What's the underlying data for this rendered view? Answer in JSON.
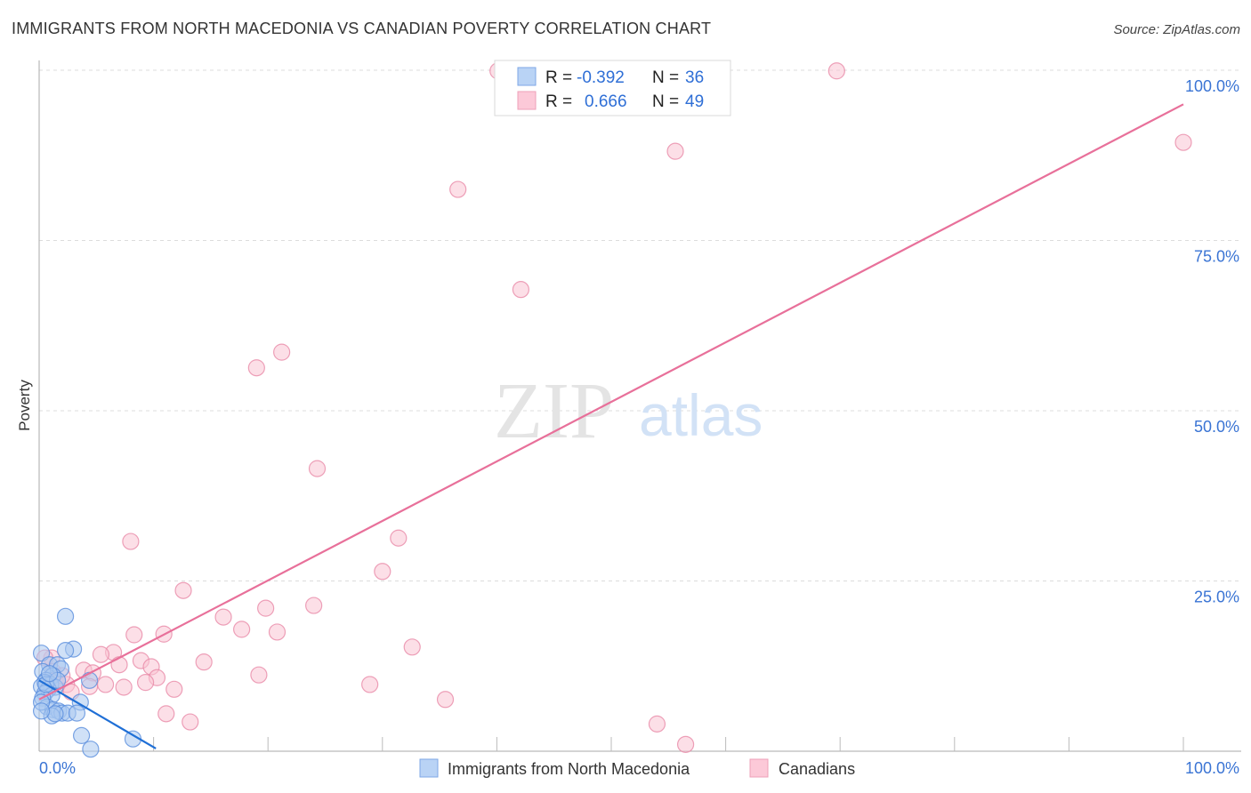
{
  "title": "IMMIGRANTS FROM NORTH MACEDONIA VS CANADIAN POVERTY CORRELATION CHART",
  "source": "Source: ZipAtlas.com",
  "watermark": {
    "zip": "ZIP",
    "atlas": "atlas"
  },
  "colors": {
    "blue_fill": "#a9c8f0",
    "blue_stroke": "#5b8fdd",
    "blue_line": "#1f6fd6",
    "pink_fill": "#f9c4d4",
    "pink_stroke": "#e88aa8",
    "pink_line": "#e8709a",
    "tick_text": "#3a74d4"
  },
  "chart_data": {
    "type": "scatter",
    "title": "IMMIGRANTS FROM NORTH MACEDONIA VS CANADIAN POVERTY CORRELATION CHART",
    "xlabel": "",
    "ylabel": "Poverty",
    "xlim": [
      0,
      100
    ],
    "ylim": [
      0,
      100
    ],
    "x_tick_labels": [
      "0.0%",
      "100.0%"
    ],
    "y_ticks": [
      25,
      50,
      75,
      100
    ],
    "y_tick_labels": [
      "25.0%",
      "50.0%",
      "75.0%",
      "100.0%"
    ],
    "grid": "horizontal dashed",
    "legend_position": "top-center",
    "stats": [
      {
        "r_label": "R =",
        "r": "-0.392",
        "n_label": "N =",
        "n": "36"
      },
      {
        "r_label": "R =",
        "r": "0.666",
        "n_label": "N =",
        "n": "49"
      }
    ],
    "series": [
      {
        "name": "Immigrants from North Macedonia",
        "color": "blue",
        "trend": {
          "x": [
            0,
            10.2
          ],
          "y": [
            10.4,
            0.4
          ]
        },
        "points": [
          [
            2.3,
            19.8
          ],
          [
            3.0,
            15.0
          ],
          [
            2.3,
            14.8
          ],
          [
            0.2,
            14.4
          ],
          [
            0.9,
            12.7
          ],
          [
            1.6,
            12.7
          ],
          [
            1.9,
            12.1
          ],
          [
            0.3,
            11.7
          ],
          [
            1.2,
            11.1
          ],
          [
            0.6,
            10.4
          ],
          [
            0.5,
            10.1
          ],
          [
            1.0,
            9.8
          ],
          [
            0.2,
            9.5
          ],
          [
            1.4,
            9.4
          ],
          [
            0.8,
            9.1
          ],
          [
            0.5,
            8.5
          ],
          [
            1.1,
            8.2
          ],
          [
            0.3,
            7.8
          ],
          [
            3.6,
            7.2
          ],
          [
            0.7,
            6.5
          ],
          [
            1.2,
            6.1
          ],
          [
            1.7,
            5.9
          ],
          [
            2.0,
            5.6
          ],
          [
            2.5,
            5.6
          ],
          [
            3.3,
            5.6
          ],
          [
            1.1,
            5.2
          ],
          [
            1.4,
            5.5
          ],
          [
            4.4,
            10.4
          ],
          [
            3.7,
            2.3
          ],
          [
            8.2,
            1.8
          ],
          [
            4.5,
            0.3
          ],
          [
            0.2,
            7.2
          ],
          [
            0.6,
            9.8
          ],
          [
            1.6,
            10.4
          ],
          [
            0.9,
            11.4
          ],
          [
            0.2,
            5.9
          ]
        ]
      },
      {
        "name": "Canadians",
        "color": "pink",
        "trend": {
          "x": [
            0,
            100
          ],
          "y": [
            7.6,
            95.0
          ]
        },
        "points": [
          [
            40.1,
            99.9
          ],
          [
            69.7,
            99.9
          ],
          [
            100,
            89.4
          ],
          [
            55.6,
            88.1
          ],
          [
            36.6,
            82.5
          ],
          [
            42.1,
            67.8
          ],
          [
            21.2,
            58.6
          ],
          [
            19.0,
            56.3
          ],
          [
            24.3,
            41.5
          ],
          [
            31.4,
            31.3
          ],
          [
            8.0,
            30.8
          ],
          [
            30.0,
            26.4
          ],
          [
            12.6,
            23.6
          ],
          [
            24.0,
            21.4
          ],
          [
            19.8,
            21.0
          ],
          [
            16.1,
            19.7
          ],
          [
            17.7,
            17.9
          ],
          [
            20.8,
            17.5
          ],
          [
            10.9,
            17.2
          ],
          [
            8.3,
            17.1
          ],
          [
            32.6,
            15.3
          ],
          [
            6.5,
            14.5
          ],
          [
            5.4,
            14.2
          ],
          [
            14.4,
            13.1
          ],
          [
            8.9,
            13.3
          ],
          [
            7.0,
            12.7
          ],
          [
            9.8,
            12.4
          ],
          [
            3.9,
            11.9
          ],
          [
            4.7,
            11.5
          ],
          [
            10.3,
            10.8
          ],
          [
            19.2,
            11.2
          ],
          [
            9.3,
            10.1
          ],
          [
            11.8,
            9.1
          ],
          [
            5.8,
            9.8
          ],
          [
            7.4,
            9.4
          ],
          [
            4.4,
            9.5
          ],
          [
            28.9,
            9.8
          ],
          [
            1.4,
            10.4
          ],
          [
            2.4,
            9.8
          ],
          [
            35.5,
            7.6
          ],
          [
            11.1,
            5.5
          ],
          [
            13.2,
            4.3
          ],
          [
            54.0,
            4.0
          ],
          [
            56.5,
            1.0
          ],
          [
            1.1,
            13.7
          ],
          [
            2.8,
            8.7
          ],
          [
            0.5,
            13.7
          ],
          [
            1.2,
            11.7
          ],
          [
            2.0,
            11.1
          ]
        ]
      }
    ]
  }
}
